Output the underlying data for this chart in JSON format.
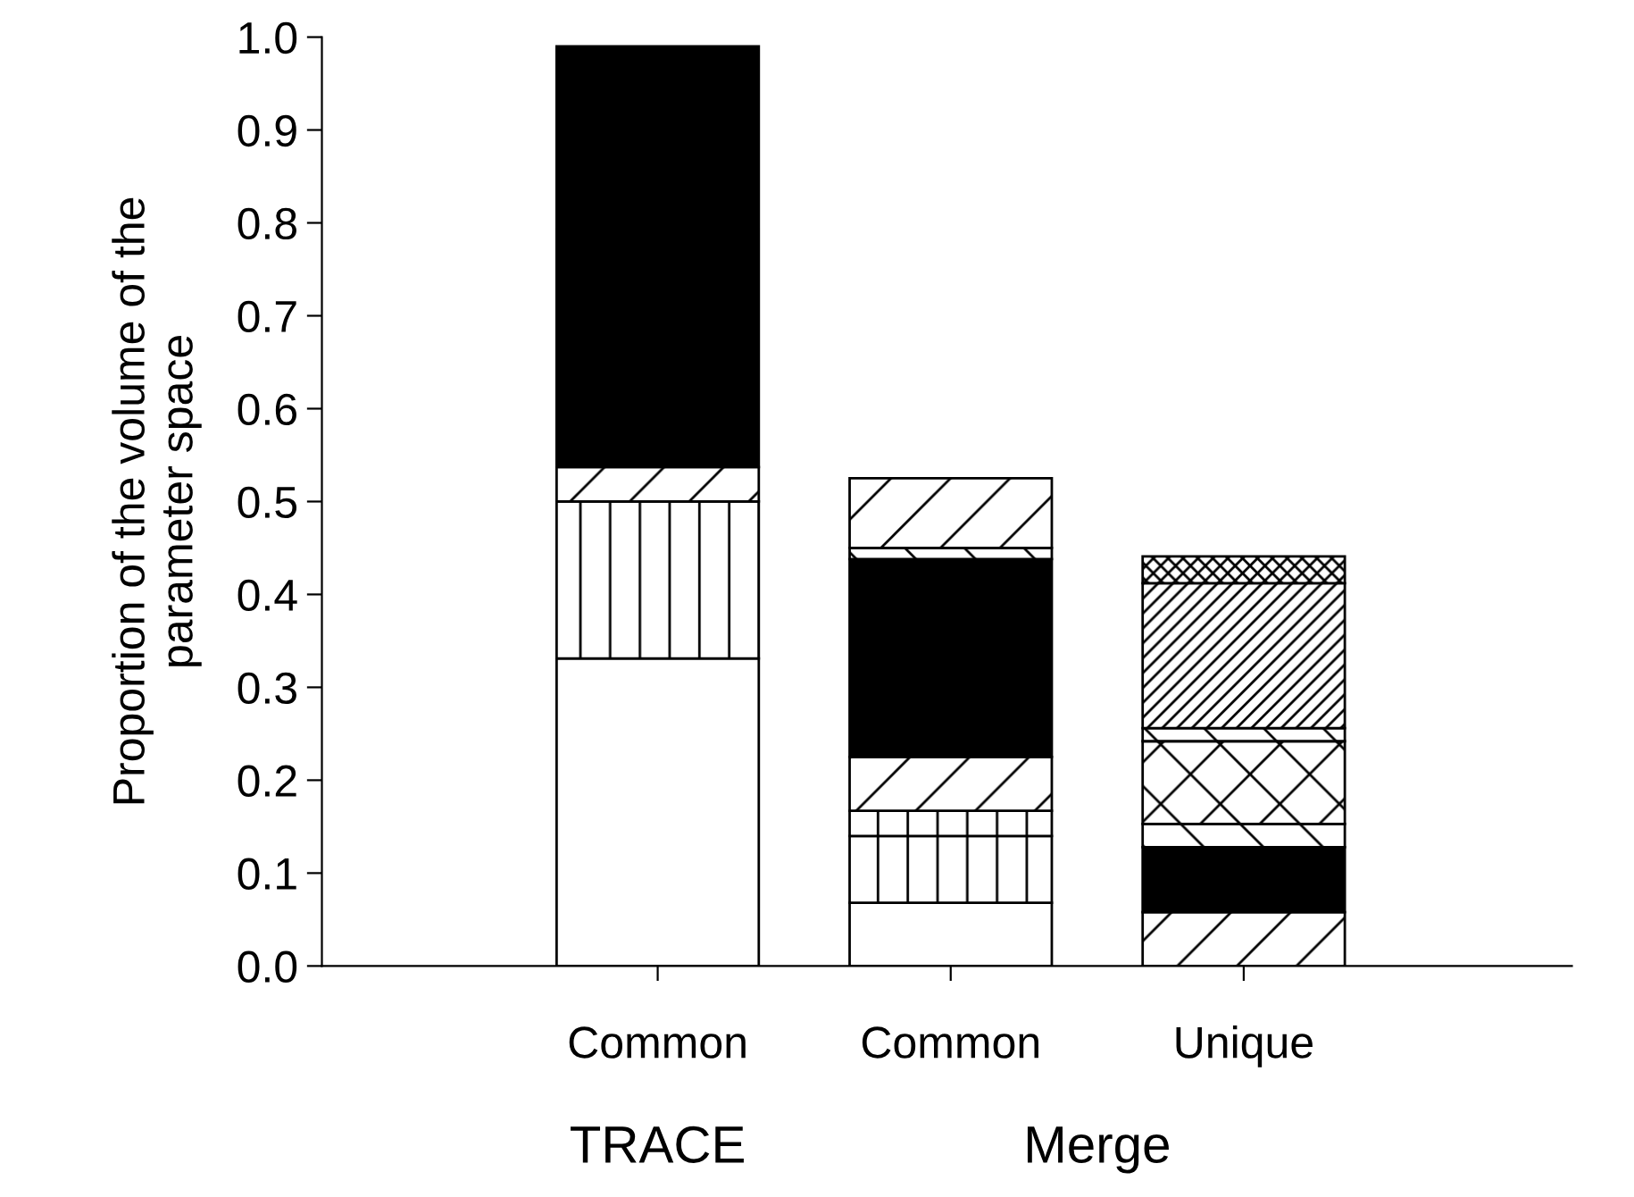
{
  "chart_data": {
    "type": "bar",
    "stacked": true,
    "categories": [
      "Common",
      "Common",
      "Unique"
    ],
    "annotations": [
      "TRACE",
      "Merge"
    ],
    "ylabel": "Proportion of the volume of the\nparameter space",
    "ylim": [
      0,
      1.0
    ],
    "yticks": [
      {
        "value": 0,
        "label": "0.0"
      },
      0.1,
      0.2,
      0.3,
      0.4,
      0.5,
      0.6,
      0.7,
      0.8,
      0.9,
      {
        "value": 1.0,
        "label": "1.0"
      }
    ],
    "series": [
      {
        "values": [
          0.331,
          0.068,
          0.058
        ],
        "colors": [
          "#ffffff",
          "#ffffff",
          "#000000"
        ]
      },
      {
        "values": [
          0.169,
          0.072,
          0.07
        ],
        "colors": [
          "#000000",
          "#000000",
          "#000000"
        ]
      },
      {
        "values": [
          0.037,
          0.027,
          0.025
        ],
        "colors": [
          "#000000",
          "#000000",
          "#000000"
        ]
      },
      {
        "values": [
          0.453,
          0.058,
          0.089
        ],
        "colors": [
          "#000000",
          "#000000",
          "#000000"
        ]
      },
      {
        "values": [
          null,
          0.213,
          0.014
        ],
        "colors": [
          "#ffffff",
          "#000000",
          "#000000"
        ]
      },
      {
        "values": [
          null,
          0.012,
          0.156
        ],
        "colors": [
          "#ffffff",
          "#000000",
          "#000000"
        ]
      },
      {
        "values": [
          null,
          0.075,
          0.029
        ],
        "colors": [
          "#ffffff",
          "#000000",
          "#000000"
        ]
      }
    ]
  }
}
